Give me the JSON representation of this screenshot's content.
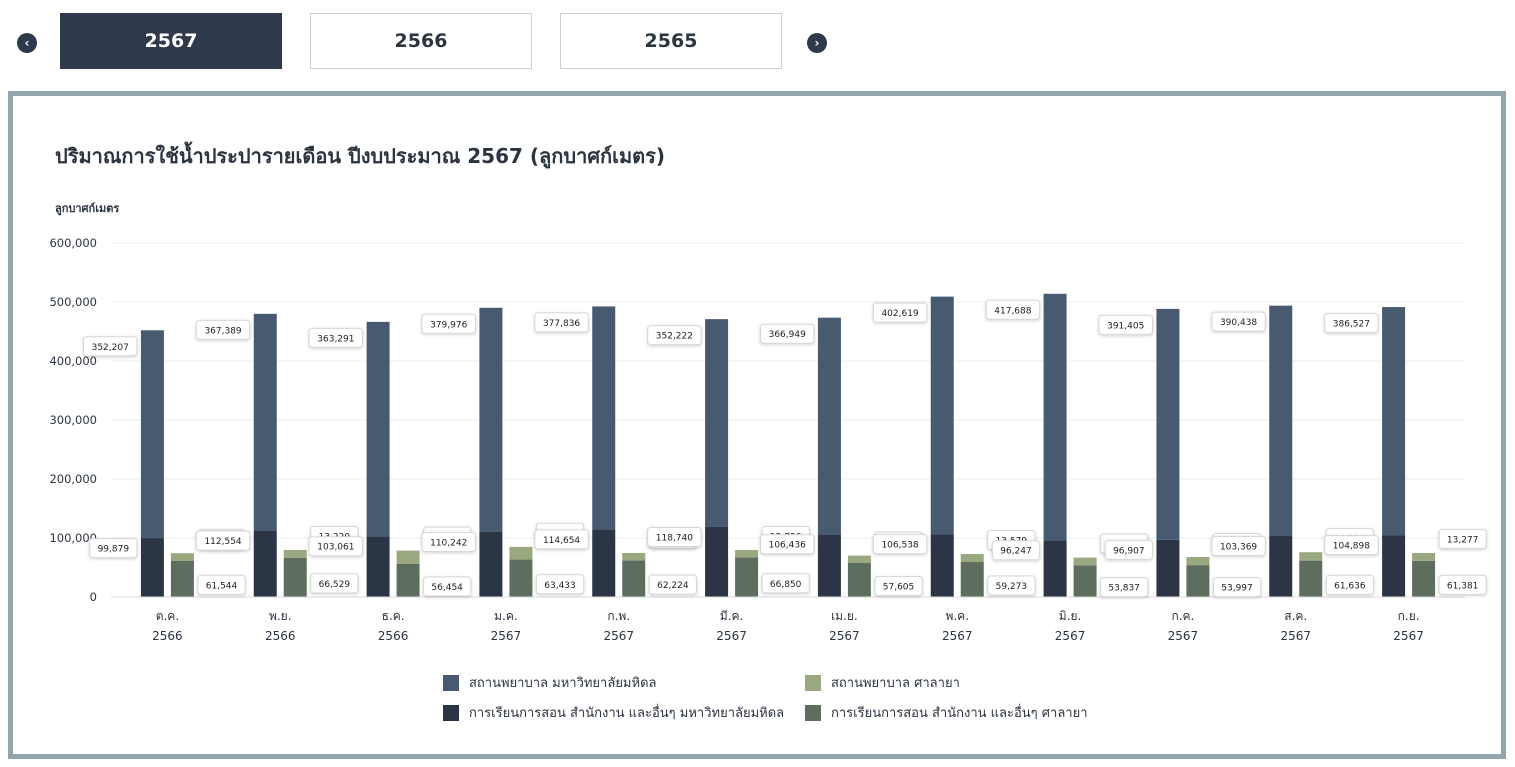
{
  "year_tabs": {
    "prev_icon": "chevron-left-icon",
    "next_icon": "chevron-right-icon",
    "tabs": [
      {
        "label": "2567",
        "active": true
      },
      {
        "label": "2566",
        "active": false
      },
      {
        "label": "2565",
        "active": false
      }
    ]
  },
  "colors": {
    "s1": "#475a70",
    "s2": "#2c3546",
    "s3": "#9aa87f",
    "s4": "#5e6e5e",
    "grid": "#ececec",
    "axis_text": "#2c3440",
    "active_tab": "#2e3a4c",
    "panel_border": "#94a6ad"
  },
  "chart_data": {
    "type": "bar",
    "title": "ปริมาณการใช้น้ำประปารายเดือน ปีงบประมาณ 2567 (ลูกบาศก์เมตร)",
    "ylabel": "ลูกบาศก์เมตร",
    "xlabel": "",
    "ylim": [
      0,
      600000
    ],
    "yticks": [
      "0",
      "100,000",
      "200,000",
      "300,000",
      "400,000",
      "500,000",
      "600,000"
    ],
    "grid": true,
    "legend_position": "bottom",
    "categories": [
      {
        "month": "ต.ค.",
        "year": "2566"
      },
      {
        "month": "พ.ย.",
        "year": "2566"
      },
      {
        "month": "ธ.ค.",
        "year": "2566"
      },
      {
        "month": "ม.ค.",
        "year": "2567"
      },
      {
        "month": "ก.พ.",
        "year": "2567"
      },
      {
        "month": "มี.ค.",
        "year": "2567"
      },
      {
        "month": "เม.ย.",
        "year": "2567"
      },
      {
        "month": "พ.ค.",
        "year": "2567"
      },
      {
        "month": "มิ.ย.",
        "year": "2567"
      },
      {
        "month": "ก.ค.",
        "year": "2567"
      },
      {
        "month": "ส.ค.",
        "year": "2567"
      },
      {
        "month": "ก.ย.",
        "year": "2567"
      }
    ],
    "stacks": [
      {
        "id": "mahidol",
        "series": [
          "s2",
          "s1"
        ]
      },
      {
        "id": "salaya",
        "series": [
          "s4",
          "s3"
        ]
      }
    ],
    "series": [
      {
        "id": "s1",
        "name": "สถานพยาบาล มหาวิทยาลัยมหิดล",
        "stack": "mahidol",
        "values": [
          352207,
          367389,
          363291,
          379976,
          377836,
          352222,
          366949,
          402619,
          417688,
          391405,
          390438,
          386527
        ],
        "labels": [
          "352,207",
          "367,389",
          "363,291",
          "379,976",
          "377,836",
          "352,222",
          "366,949",
          "402,619",
          "417,688",
          "391,405",
          "390,438",
          "386,527"
        ]
      },
      {
        "id": "s3",
        "name": "สถานพยาบาล ศาลายา",
        "stack": "salaya",
        "values": [
          12712,
          13220,
          22140,
          21524,
          12343,
          12726,
          12594,
          13579,
          12947,
          13751,
          14319,
          13277
        ],
        "labels": [
          "12,712",
          "13,220",
          "22,140",
          "21,524",
          "12,343",
          "12,726",
          "12,594",
          "13,579",
          "12,947",
          "13,751",
          "14,319",
          "13,277"
        ]
      },
      {
        "id": "s2",
        "name": "การเรียนการสอน สำนักงาน และอื่นๆ มหาวิทยาลัยมหิดล",
        "stack": "mahidol",
        "values": [
          99879,
          112554,
          103061,
          110242,
          114654,
          118740,
          106436,
          106538,
          96247,
          96907,
          103369,
          104898
        ],
        "labels": [
          "99,879",
          "112,554",
          "103,061",
          "110,242",
          "114,654",
          "118,740",
          "106,436",
          "106,538",
          "96,247",
          "96,907",
          "103,369",
          "104,898"
        ]
      },
      {
        "id": "s4",
        "name": "การเรียนการสอน สำนักงาน และอื่นๆ ศาลายา",
        "stack": "salaya",
        "values": [
          61544,
          66529,
          56454,
          63433,
          62224,
          66850,
          57605,
          59273,
          53837,
          53997,
          61636,
          61381
        ],
        "labels": [
          "61,544",
          "66,529",
          "56,454",
          "63,433",
          "62,224",
          "66,850",
          "57,605",
          "59,273",
          "53,837",
          "53,997",
          "61,636",
          "61,381"
        ]
      }
    ]
  }
}
